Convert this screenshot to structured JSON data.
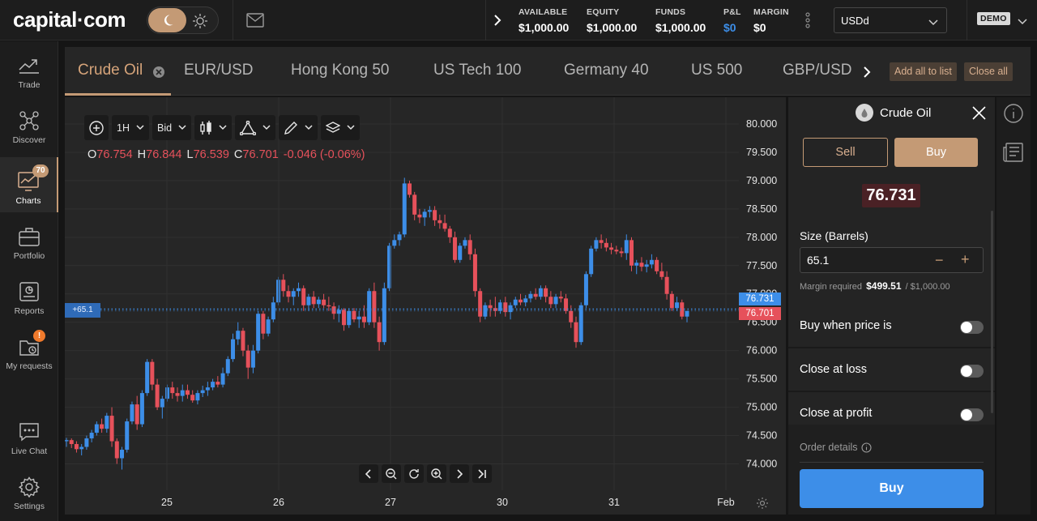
{
  "brand": {
    "logo_text": "capital·com"
  },
  "account": {
    "stats": [
      {
        "label": "AVAILABLE",
        "value": "$1,000.00"
      },
      {
        "label": "EQUITY",
        "value": "$1,000.00"
      },
      {
        "label": "FUNDS",
        "value": "$1,000.00"
      },
      {
        "label": "P&L",
        "value": "$0"
      },
      {
        "label": "MARGIN",
        "value": "$0"
      }
    ],
    "currency": "USDd",
    "mode_badge": "DEMO"
  },
  "leftnav": [
    {
      "label": "Trade",
      "icon": "trade-icon"
    },
    {
      "label": "Discover",
      "icon": "discover-icon"
    },
    {
      "label": "Charts",
      "icon": "charts-icon",
      "badge": "70",
      "active": true
    },
    {
      "label": "Portfolio",
      "icon": "portfolio-icon"
    },
    {
      "label": "Reports",
      "icon": "reports-icon"
    },
    {
      "label": "My requests",
      "icon": "requests-icon",
      "alert": "!"
    },
    {
      "label": "Live Chat",
      "icon": "chat-icon"
    },
    {
      "label": "Settings",
      "icon": "settings-icon"
    }
  ],
  "tabs": {
    "items": [
      "Crude Oil",
      "EUR/USD",
      "Hong Kong 50",
      "US Tech 100",
      "Germany 40",
      "US 500",
      "GBP/USD"
    ],
    "active": "Crude Oil",
    "add_all_label": "Add all to list",
    "close_all_label": "Close all"
  },
  "chart_toolbar": {
    "interval": "1H",
    "price_side": "Bid"
  },
  "ohlc": {
    "o_label": "O",
    "o": "76.754",
    "h_label": "H",
    "h": "76.844",
    "l_label": "L",
    "l": "76.539",
    "c_label": "C",
    "c": "76.701",
    "change": "-0.046 (-0.06%)"
  },
  "chart_data": {
    "type": "candlestick",
    "instrument": "Crude Oil",
    "interval": "1H",
    "y_ticks": [
      "80.000",
      "79.500",
      "79.000",
      "78.500",
      "78.000",
      "77.500",
      "77.000",
      "76.500",
      "76.000",
      "75.500",
      "75.000",
      "74.500",
      "74.000"
    ],
    "x_ticks": [
      "25",
      "26",
      "27",
      "30",
      "31",
      "Feb"
    ],
    "ylim": [
      73.75,
      80.3
    ],
    "buy_price": "76.731",
    "sell_price": "76.701",
    "position_label": "+65.1",
    "up_color": "#3d8ee8",
    "down_color": "#e6515b",
    "ohlc": [
      [
        74.4,
        74.46,
        74.3,
        74.42
      ],
      [
        74.42,
        74.45,
        74.28,
        74.35
      ],
      [
        74.35,
        74.4,
        74.2,
        74.26
      ],
      [
        74.26,
        74.35,
        74.15,
        74.3
      ],
      [
        74.3,
        74.5,
        74.25,
        74.45
      ],
      [
        74.45,
        74.6,
        74.38,
        74.55
      ],
      [
        74.55,
        74.75,
        74.5,
        74.7
      ],
      [
        74.7,
        74.8,
        74.55,
        74.62
      ],
      [
        74.62,
        74.9,
        74.55,
        74.85
      ],
      [
        74.85,
        75.0,
        74.3,
        74.4
      ],
      [
        74.4,
        74.45,
        74.0,
        74.1
      ],
      [
        74.1,
        74.3,
        73.9,
        74.25
      ],
      [
        74.25,
        74.8,
        74.2,
        74.75
      ],
      [
        74.75,
        75.1,
        74.7,
        75.05
      ],
      [
        75.05,
        75.2,
        74.6,
        74.7
      ],
      [
        74.7,
        75.3,
        74.65,
        75.25
      ],
      [
        75.25,
        75.85,
        75.2,
        75.8
      ],
      [
        75.8,
        75.85,
        75.3,
        75.4
      ],
      [
        75.4,
        75.5,
        74.95,
        75.0
      ],
      [
        75.0,
        75.2,
        74.8,
        75.15
      ],
      [
        75.15,
        75.4,
        75.1,
        75.35
      ],
      [
        75.35,
        75.45,
        75.15,
        75.25
      ],
      [
        75.25,
        75.35,
        75.1,
        75.2
      ],
      [
        75.2,
        75.4,
        75.1,
        75.3
      ],
      [
        75.3,
        75.4,
        75.15,
        75.22
      ],
      [
        75.22,
        75.3,
        75.08,
        75.12
      ],
      [
        75.12,
        75.3,
        75.05,
        75.25
      ],
      [
        75.25,
        75.38,
        75.18,
        75.3
      ],
      [
        75.3,
        75.45,
        75.2,
        75.35
      ],
      [
        75.35,
        75.5,
        75.3,
        75.45
      ],
      [
        75.45,
        75.55,
        75.35,
        75.4
      ],
      [
        75.4,
        75.7,
        75.35,
        75.6
      ],
      [
        75.6,
        75.9,
        75.55,
        75.85
      ],
      [
        75.85,
        76.3,
        75.8,
        76.2
      ],
      [
        76.2,
        76.5,
        76.1,
        76.35
      ],
      [
        76.35,
        76.4,
        75.9,
        76.0
      ],
      [
        76.0,
        76.1,
        75.5,
        75.7
      ],
      [
        75.7,
        76.1,
        75.6,
        76.0
      ],
      [
        76.0,
        76.7,
        75.95,
        76.65
      ],
      [
        76.65,
        76.7,
        76.2,
        76.3
      ],
      [
        76.3,
        76.6,
        76.25,
        76.55
      ],
      [
        76.55,
        76.95,
        76.5,
        76.85
      ],
      [
        76.85,
        77.3,
        76.8,
        77.25
      ],
      [
        77.25,
        77.35,
        76.95,
        77.05
      ],
      [
        77.05,
        77.15,
        76.85,
        76.95
      ],
      [
        76.95,
        77.1,
        76.8,
        77.05
      ],
      [
        77.05,
        77.2,
        76.95,
        77.1
      ],
      [
        77.1,
        77.15,
        76.7,
        76.8
      ],
      [
        76.8,
        77.0,
        76.7,
        76.95
      ],
      [
        76.95,
        77.05,
        76.75,
        76.82
      ],
      [
        76.82,
        76.95,
        76.75,
        76.9
      ],
      [
        76.9,
        77.0,
        76.75,
        76.8
      ],
      [
        76.8,
        76.95,
        76.7,
        76.78
      ],
      [
        76.78,
        76.85,
        76.55,
        76.65
      ],
      [
        76.65,
        76.8,
        76.5,
        76.72
      ],
      [
        76.72,
        76.75,
        76.35,
        76.45
      ],
      [
        76.45,
        76.75,
        76.4,
        76.7
      ],
      [
        76.7,
        76.75,
        76.5,
        76.55
      ],
      [
        76.55,
        76.7,
        76.4,
        76.6
      ],
      [
        76.6,
        76.8,
        76.4,
        76.5
      ],
      [
        76.5,
        77.1,
        76.45,
        77.05
      ],
      [
        77.05,
        77.2,
        76.4,
        76.5
      ],
      [
        76.5,
        76.6,
        76.0,
        76.15
      ],
      [
        76.15,
        77.2,
        76.1,
        77.1
      ],
      [
        77.1,
        77.9,
        77.05,
        77.85
      ],
      [
        77.85,
        78.05,
        77.8,
        77.95
      ],
      [
        77.95,
        78.1,
        77.85,
        78.05
      ],
      [
        78.05,
        79.05,
        78.0,
        78.95
      ],
      [
        78.95,
        79.0,
        78.7,
        78.75
      ],
      [
        78.75,
        78.8,
        78.3,
        78.4
      ],
      [
        78.4,
        78.5,
        78.25,
        78.35
      ],
      [
        78.35,
        78.5,
        78.2,
        78.45
      ],
      [
        78.45,
        78.55,
        78.35,
        78.48
      ],
      [
        78.48,
        78.55,
        78.2,
        78.3
      ],
      [
        78.3,
        78.4,
        78.15,
        78.25
      ],
      [
        78.25,
        78.4,
        78.1,
        78.15
      ],
      [
        78.15,
        78.2,
        77.9,
        78.0
      ],
      [
        78.0,
        78.1,
        77.55,
        77.6
      ],
      [
        77.6,
        77.9,
        77.55,
        77.85
      ],
      [
        77.85,
        78.0,
        77.8,
        77.95
      ],
      [
        77.95,
        78.05,
        77.6,
        77.7
      ],
      [
        77.7,
        77.8,
        76.95,
        77.05
      ],
      [
        77.05,
        77.1,
        76.5,
        76.6
      ],
      [
        76.6,
        76.85,
        76.55,
        76.8
      ],
      [
        76.8,
        76.9,
        76.6,
        76.75
      ],
      [
        76.75,
        76.95,
        76.6,
        76.7
      ],
      [
        76.7,
        76.9,
        76.65,
        76.85
      ],
      [
        76.85,
        76.95,
        76.6,
        76.68
      ],
      [
        76.68,
        76.85,
        76.55,
        76.8
      ],
      [
        76.8,
        76.95,
        76.75,
        76.9
      ],
      [
        76.9,
        77.0,
        76.8,
        76.85
      ],
      [
        76.85,
        76.98,
        76.78,
        76.92
      ],
      [
        76.92,
        77.05,
        76.85,
        77.0
      ],
      [
        77.0,
        77.1,
        76.9,
        76.95
      ],
      [
        76.95,
        77.15,
        76.9,
        77.1
      ],
      [
        77.1,
        77.15,
        76.85,
        76.95
      ],
      [
        76.95,
        77.05,
        76.75,
        76.82
      ],
      [
        76.82,
        77.0,
        76.75,
        76.95
      ],
      [
        76.95,
        77.05,
        76.85,
        76.92
      ],
      [
        76.92,
        77.0,
        76.65,
        76.7
      ],
      [
        76.7,
        76.8,
        76.4,
        76.5
      ],
      [
        76.5,
        76.6,
        76.05,
        76.15
      ],
      [
        76.15,
        76.85,
        76.1,
        76.8
      ],
      [
        76.8,
        77.4,
        76.75,
        77.35
      ],
      [
        77.35,
        77.85,
        77.3,
        77.8
      ],
      [
        77.8,
        78.0,
        77.75,
        77.95
      ],
      [
        77.95,
        78.05,
        77.8,
        77.9
      ],
      [
        77.9,
        77.98,
        77.75,
        77.82
      ],
      [
        77.82,
        77.9,
        77.7,
        77.78
      ],
      [
        77.78,
        77.85,
        77.7,
        77.75
      ],
      [
        77.75,
        77.82,
        77.65,
        77.72
      ],
      [
        77.72,
        78.05,
        77.6,
        77.95
      ],
      [
        77.95,
        78.0,
        77.4,
        77.5
      ],
      [
        77.5,
        77.6,
        77.35,
        77.55
      ],
      [
        77.55,
        77.65,
        77.4,
        77.48
      ],
      [
        77.48,
        77.6,
        77.38,
        77.52
      ],
      [
        77.52,
        77.7,
        77.45,
        77.6
      ],
      [
        77.6,
        77.65,
        77.35,
        77.4
      ],
      [
        77.4,
        77.55,
        77.25,
        77.3
      ],
      [
        77.3,
        77.4,
        76.9,
        77.0
      ],
      [
        77.0,
        77.05,
        76.7,
        76.75
      ],
      [
        76.75,
        76.95,
        76.7,
        76.85
      ],
      [
        76.85,
        76.9,
        76.55,
        76.6
      ],
      [
        76.6,
        76.7,
        76.5,
        76.7
      ]
    ]
  },
  "order_panel": {
    "instrument": "Crude Oil",
    "sell_label": "Sell",
    "buy_label": "Buy",
    "price": "76.731",
    "size_label": "Size (Barrels)",
    "size_value": "65.1",
    "minus": "−",
    "plus": "+",
    "margin_label": "Margin required",
    "margin_value": "$499.51",
    "margin_total": "/ $1,000.00",
    "buy_when_label": "Buy when price is",
    "close_loss_label": "Close at loss",
    "close_profit_label": "Close at profit",
    "order_details_label": "Order details",
    "submit_label": "Buy"
  }
}
